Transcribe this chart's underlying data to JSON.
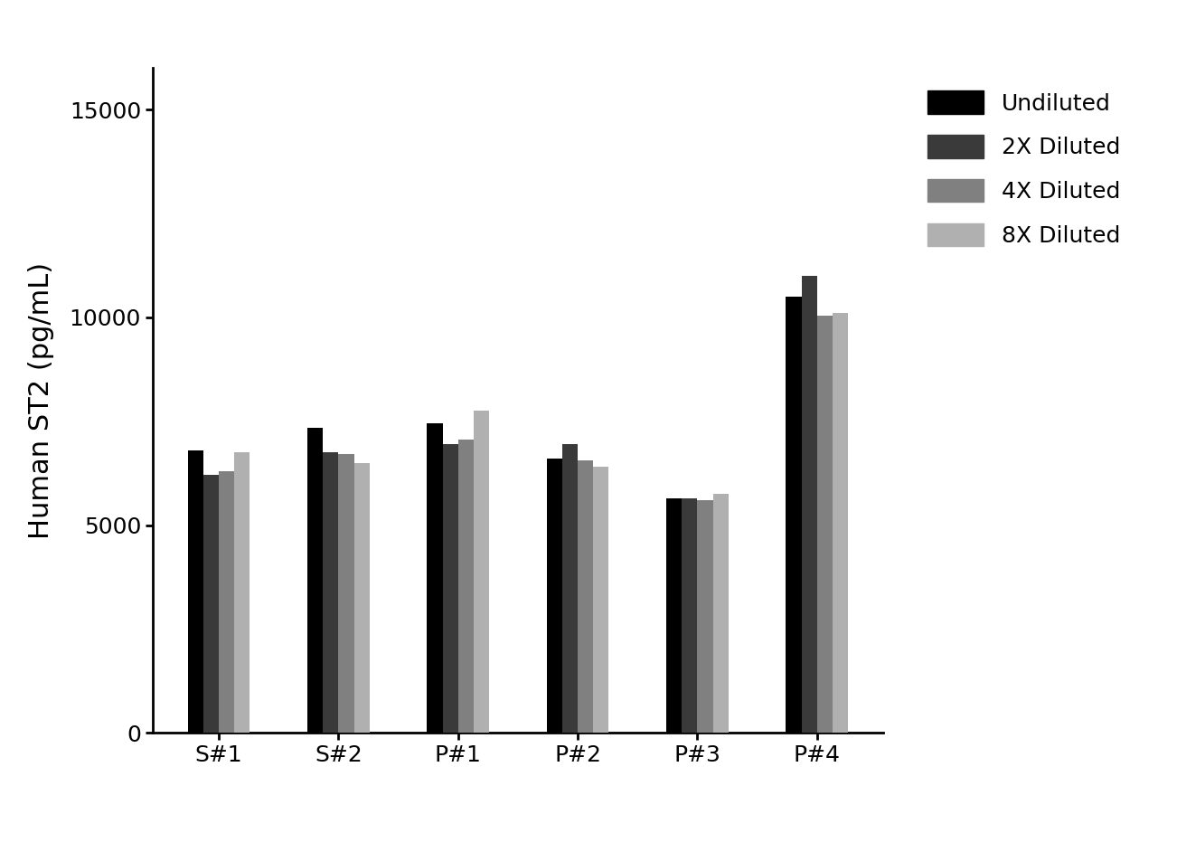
{
  "categories": [
    "S#1",
    "S#2",
    "P#1",
    "P#2",
    "P#3",
    "P#4"
  ],
  "series": {
    "Undiluted": [
      6800,
      7350,
      7450,
      6600,
      5650,
      10500
    ],
    "2X Diluted": [
      6200,
      6750,
      6950,
      6950,
      5650,
      11000
    ],
    "4X Diluted": [
      6300,
      6700,
      7050,
      6550,
      5600,
      10050
    ],
    "8X Diluted": [
      6750,
      6500,
      7750,
      6400,
      5750,
      10100
    ]
  },
  "colors": {
    "Undiluted": "#000000",
    "2X Diluted": "#3a3a3a",
    "4X Diluted": "#808080",
    "8X Diluted": "#b0b0b0"
  },
  "ylabel": "Human ST2 (pg/mL)",
  "ylim": [
    0,
    16000
  ],
  "yticks": [
    0,
    5000,
    10000,
    15000
  ],
  "bar_width": 0.13,
  "background_color": "#ffffff",
  "legend_fontsize": 18,
  "ylabel_fontsize": 22,
  "tick_fontsize": 18
}
